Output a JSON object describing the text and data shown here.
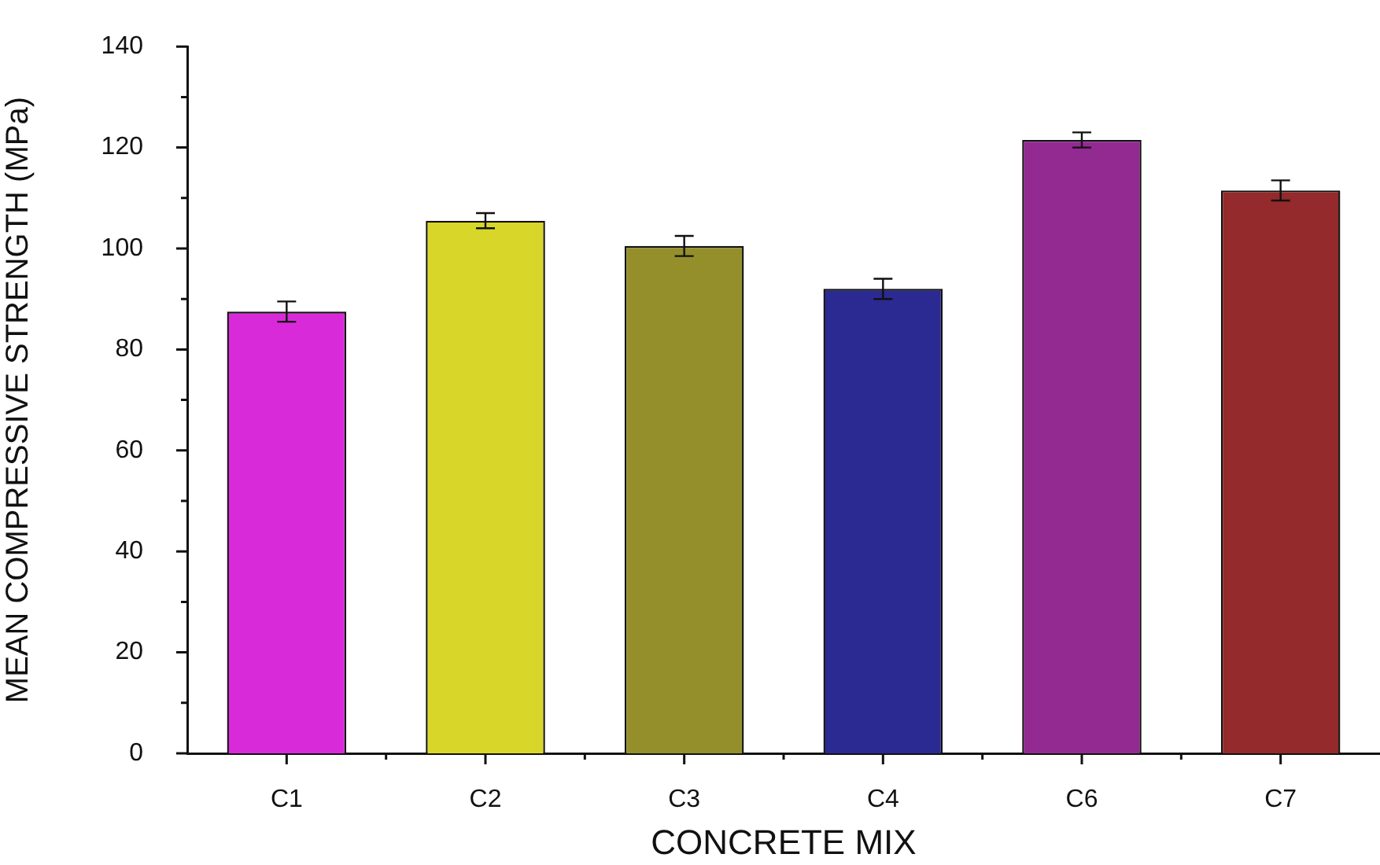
{
  "chart_data": {
    "type": "bar",
    "xlabel": "CONCRETE MIX",
    "ylabel": "MEAN COMPRESSIVE STRENGTH (MPa)",
    "categories": [
      "C1",
      "C2",
      "C3",
      "C4",
      "C6",
      "C7"
    ],
    "values": [
      87.5,
      105.5,
      100.5,
      92,
      121.5,
      111.5
    ],
    "errors": [
      2,
      1.5,
      2,
      2,
      1.5,
      2
    ],
    "colors": [
      "#d92ad9",
      "#d9d62a",
      "#948f2b",
      "#2a2a92",
      "#932a92",
      "#942a2b"
    ],
    "ylim": [
      0,
      140
    ],
    "yticks": [
      0,
      {
        "value": 10,
        "label": null
      },
      20,
      {
        "value": 30,
        "label": null
      },
      40,
      {
        "value": 50,
        "label": null
      },
      60,
      {
        "value": 70,
        "label": null
      },
      80,
      {
        "value": 90,
        "label": null
      },
      100,
      {
        "value": 110,
        "label": null
      },
      120,
      {
        "value": 130,
        "label": null
      },
      140
    ]
  }
}
